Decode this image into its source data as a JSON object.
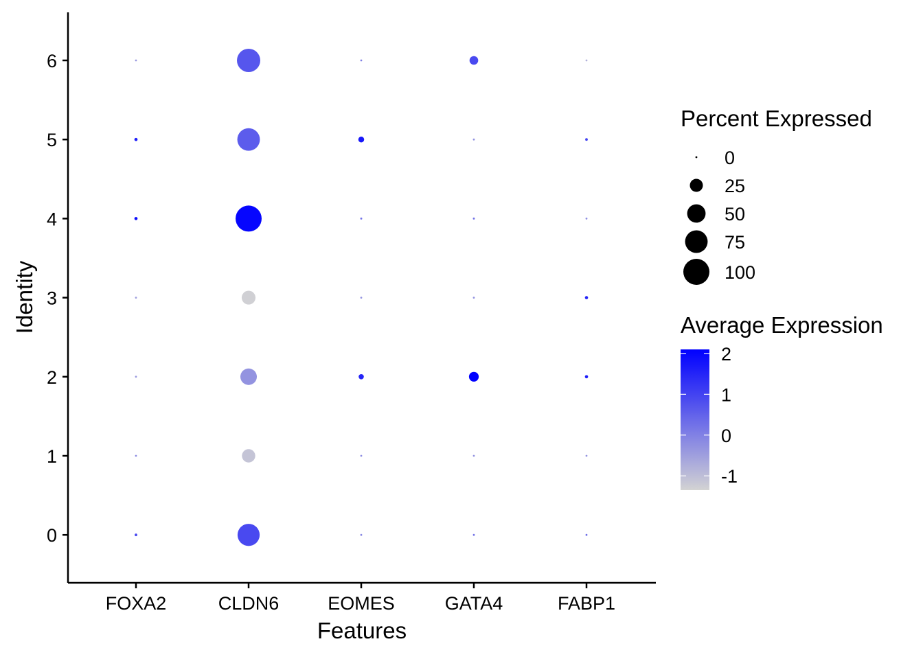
{
  "chart_data": {
    "type": "dotplot",
    "xlabel": "Features",
    "ylabel": "Identity",
    "features": [
      "FOXA2",
      "CLDN6",
      "EOMES",
      "GATA4",
      "FABP1"
    ],
    "identities": [
      "0",
      "1",
      "2",
      "3",
      "4",
      "5",
      "6"
    ],
    "ylim": [
      -0.6,
      6.6
    ],
    "points": [
      {
        "feature": "FOXA2",
        "identity": "0",
        "pct": 1,
        "avg": 0.9
      },
      {
        "feature": "CLDN6",
        "identity": "0",
        "pct": 72,
        "avg": 0.9
      },
      {
        "feature": "EOMES",
        "identity": "0",
        "pct": 0.3,
        "avg": -0.1
      },
      {
        "feature": "GATA4",
        "identity": "0",
        "pct": 0.4,
        "avg": 0.2
      },
      {
        "feature": "FABP1",
        "identity": "0",
        "pct": 0.5,
        "avg": 0.3
      },
      {
        "feature": "FOXA2",
        "identity": "1",
        "pct": 0.3,
        "avg": -0.2
      },
      {
        "feature": "CLDN6",
        "identity": "1",
        "pct": 26,
        "avg": -1.1
      },
      {
        "feature": "EOMES",
        "identity": "1",
        "pct": 0.3,
        "avg": -0.2
      },
      {
        "feature": "GATA4",
        "identity": "1",
        "pct": 0.3,
        "avg": -0.3
      },
      {
        "feature": "FABP1",
        "identity": "1",
        "pct": 0.3,
        "avg": -0.3
      },
      {
        "feature": "FOXA2",
        "identity": "2",
        "pct": 0.3,
        "avg": -0.4
      },
      {
        "feature": "CLDN6",
        "identity": "2",
        "pct": 40,
        "avg": -0.3
      },
      {
        "feature": "EOMES",
        "identity": "2",
        "pct": 4,
        "avg": 1.5
      },
      {
        "feature": "GATA4",
        "identity": "2",
        "pct": 14,
        "avg": 2.2
      },
      {
        "feature": "FABP1",
        "identity": "2",
        "pct": 1.5,
        "avg": 1.6
      },
      {
        "feature": "FOXA2",
        "identity": "3",
        "pct": 0.3,
        "avg": -0.5
      },
      {
        "feature": "CLDN6",
        "identity": "3",
        "pct": 28,
        "avg": -1.3
      },
      {
        "feature": "EOMES",
        "identity": "3",
        "pct": 0.3,
        "avg": -0.3
      },
      {
        "feature": "GATA4",
        "identity": "3",
        "pct": 0.3,
        "avg": -0.3
      },
      {
        "feature": "FABP1",
        "identity": "3",
        "pct": 1.5,
        "avg": 1.5
      },
      {
        "feature": "FOXA2",
        "identity": "4",
        "pct": 1.5,
        "avg": 1.9
      },
      {
        "feature": "CLDN6",
        "identity": "4",
        "pct": 100,
        "avg": 2.0
      },
      {
        "feature": "EOMES",
        "identity": "4",
        "pct": 0.6,
        "avg": 0.2
      },
      {
        "feature": "GATA4",
        "identity": "4",
        "pct": 0.6,
        "avg": 0.2
      },
      {
        "feature": "FABP1",
        "identity": "4",
        "pct": 0.4,
        "avg": -0.2
      },
      {
        "feature": "FOXA2",
        "identity": "5",
        "pct": 1.5,
        "avg": 1.6
      },
      {
        "feature": "CLDN6",
        "identity": "5",
        "pct": 75,
        "avg": 0.6
      },
      {
        "feature": "EOMES",
        "identity": "5",
        "pct": 5,
        "avg": 1.7
      },
      {
        "feature": "GATA4",
        "identity": "5",
        "pct": 0.3,
        "avg": -0.3
      },
      {
        "feature": "FABP1",
        "identity": "5",
        "pct": 1,
        "avg": 1.0
      },
      {
        "feature": "FOXA2",
        "identity": "6",
        "pct": 0.3,
        "avg": -0.4
      },
      {
        "feature": "CLDN6",
        "identity": "6",
        "pct": 80,
        "avg": 0.7
      },
      {
        "feature": "EOMES",
        "identity": "6",
        "pct": 0.3,
        "avg": 0.0
      },
      {
        "feature": "GATA4",
        "identity": "6",
        "pct": 11,
        "avg": 0.9
      },
      {
        "feature": "FABP1",
        "identity": "6",
        "pct": 0.2,
        "avg": -0.8
      }
    ],
    "legend_size": {
      "title": "Percent Expressed",
      "breaks": [
        0,
        25,
        50,
        75,
        100
      ],
      "labels": [
        "0",
        "25",
        "50",
        "75",
        "100"
      ]
    },
    "legend_color": {
      "title": "Average Expression",
      "breaks": [
        2,
        1,
        0,
        -1
      ],
      "labels": [
        "2",
        "1",
        "0",
        "-1"
      ],
      "range": [
        -1.35,
        2.1
      ],
      "low_color": "#d3d3d3",
      "high_color": "#0000ff"
    },
    "legend_placement": "right",
    "grid": false
  }
}
